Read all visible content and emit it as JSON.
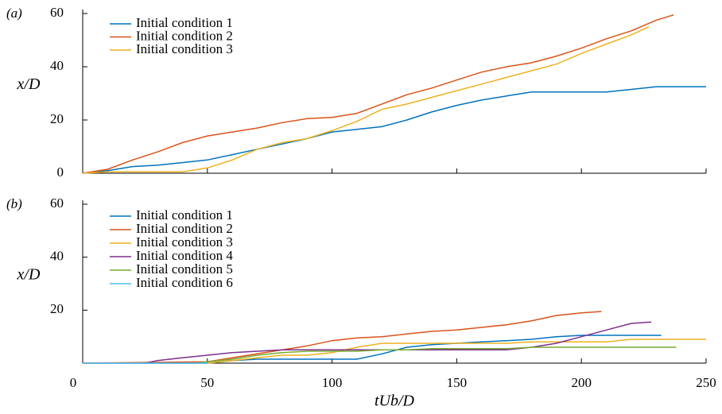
{
  "chart_data": [
    {
      "type": "line",
      "panel_label": "(a)",
      "ylabel": "x/D",
      "xlim": [
        0,
        250
      ],
      "xticks": [
        0,
        50,
        100,
        150,
        200,
        250
      ],
      "show_xtick_labels": false,
      "ylim": [
        0,
        60
      ],
      "yticks": [
        0,
        20,
        40,
        60
      ],
      "legend": "upper left",
      "series": [
        {
          "name": "Initial condition 1",
          "color": "#0072bd",
          "x": [
            0,
            10,
            20,
            30,
            40,
            50,
            60,
            70,
            80,
            90,
            100,
            110,
            120,
            130,
            140,
            150,
            160,
            170,
            180,
            190,
            200,
            210,
            220,
            230,
            240,
            250
          ],
          "values": [
            0,
            1,
            2.5,
            3,
            4,
            5,
            7,
            9,
            11,
            13,
            15.5,
            16.5,
            17.5,
            20,
            23,
            25.5,
            27.5,
            29,
            30.5,
            30.5,
            30.5,
            30.5,
            31.5,
            32.5,
            32.5,
            32.5
          ]
        },
        {
          "name": "Initial condition 2",
          "color": "#d95319",
          "x": [
            0,
            10,
            20,
            30,
            40,
            50,
            60,
            70,
            80,
            90,
            100,
            110,
            120,
            130,
            140,
            150,
            160,
            170,
            180,
            190,
            200,
            210,
            220,
            230,
            237
          ],
          "values": [
            0,
            1.5,
            5,
            8,
            11.5,
            14,
            15.5,
            17,
            19,
            20.5,
            21,
            22.5,
            26,
            29.5,
            32,
            35,
            38,
            40,
            41.5,
            44,
            47,
            50.5,
            53.5,
            57.5,
            59.5
          ]
        },
        {
          "name": "Initial condition 3",
          "color": "#edb120",
          "x": [
            0,
            10,
            20,
            30,
            40,
            50,
            60,
            70,
            80,
            90,
            100,
            110,
            120,
            130,
            140,
            150,
            160,
            170,
            180,
            190,
            200,
            210,
            220,
            227
          ],
          "values": [
            0,
            0.5,
            0.5,
            0.5,
            0.5,
            2,
            5,
            9,
            11.5,
            13,
            16,
            19.5,
            24,
            26,
            28.5,
            31,
            33.5,
            36,
            38.5,
            41,
            45,
            48.5,
            52,
            55
          ]
        }
      ]
    },
    {
      "type": "line",
      "panel_label": "(b)",
      "ylabel": "x/D",
      "xlabel": "tUb/D",
      "xlim": [
        0,
        250
      ],
      "xticks": [
        0,
        50,
        100,
        150,
        200,
        250
      ],
      "show_xtick_labels": true,
      "ylim": [
        0,
        60
      ],
      "yticks": [
        20,
        40,
        60
      ],
      "legend": "upper left",
      "series": [
        {
          "name": "Initial condition 1",
          "color": "#0072bd",
          "x": [
            0,
            50,
            60,
            70,
            80,
            90,
            100,
            110,
            120,
            130,
            140,
            150,
            160,
            170,
            180,
            190,
            200,
            210,
            220,
            232
          ],
          "values": [
            0,
            0,
            1,
            1.5,
            1.5,
            1.5,
            1.5,
            1.5,
            3.5,
            6,
            7,
            7.5,
            8,
            8.5,
            9,
            10,
            10.5,
            10.5,
            10.5,
            10.5
          ]
        },
        {
          "name": "Initial condition 2",
          "color": "#d95319",
          "x": [
            0,
            50,
            60,
            70,
            80,
            90,
            100,
            110,
            120,
            130,
            140,
            150,
            160,
            170,
            180,
            190,
            200,
            208
          ],
          "values": [
            0,
            0.5,
            2,
            3.5,
            5,
            6.5,
            8.5,
            9.5,
            10,
            11,
            12,
            12.5,
            13.5,
            14.5,
            16,
            18,
            19,
            19.5
          ]
        },
        {
          "name": "Initial condition 3",
          "color": "#edb120",
          "x": [
            50,
            60,
            70,
            80,
            90,
            100,
            110,
            120,
            130,
            140,
            150,
            160,
            170,
            180,
            190,
            200,
            210,
            220,
            230,
            250
          ],
          "values": [
            0,
            1,
            2,
            3,
            3,
            4,
            6,
            7.5,
            7.5,
            7.5,
            7.5,
            7.5,
            7.5,
            8,
            8,
            8,
            8,
            9,
            9,
            9
          ]
        },
        {
          "name": "Initial condition 4",
          "color": "#7e2f8e",
          "x": [
            25,
            30,
            40,
            50,
            60,
            70,
            80,
            90,
            100,
            110,
            120,
            130,
            140,
            150,
            160,
            170,
            180,
            190,
            200,
            210,
            220,
            228
          ],
          "values": [
            0,
            1,
            2,
            3,
            4,
            4.5,
            5,
            5,
            5,
            5,
            5,
            5,
            5,
            5,
            5,
            5,
            6,
            7.5,
            10,
            12.5,
            15,
            15.5
          ]
        },
        {
          "name": "Initial condition 5",
          "color": "#77ac30",
          "x": [
            45,
            60,
            70,
            80,
            90,
            100,
            110,
            120,
            130,
            140,
            150,
            160,
            170,
            180,
            190,
            200,
            220,
            238
          ],
          "values": [
            0,
            1.5,
            3,
            4,
            4.5,
            4.5,
            4.5,
            5,
            5,
            5.5,
            5.5,
            5.5,
            5.5,
            6,
            6,
            6,
            6,
            6
          ]
        },
        {
          "name": "Initial condition 6",
          "color": "#4dbeee",
          "x": [
            0,
            50
          ],
          "values": [
            0,
            0
          ]
        }
      ]
    }
  ]
}
